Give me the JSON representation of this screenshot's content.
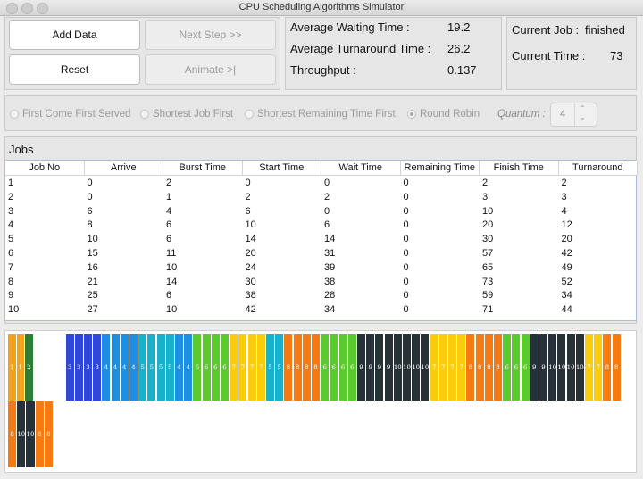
{
  "window": {
    "title": "CPU Scheduling Algorithms Simulator"
  },
  "buttons": {
    "add_data": "Add Data",
    "next_step": "Next Step >>",
    "reset": "Reset",
    "animate": "Animate >|"
  },
  "stats": {
    "avg_waiting_label": "Average Waiting Time :",
    "avg_waiting_value": "19.2",
    "avg_turnaround_label": "Average Turnaround Time :",
    "avg_turnaround_value": "26.2",
    "throughput_label": "Throughput :",
    "throughput_value": "0.137"
  },
  "status": {
    "current_job_label": "Current Job :",
    "current_job_value": "finished",
    "current_time_label": "Current Time :",
    "current_time_value": "73"
  },
  "algorithms": [
    {
      "label": "First Come First Served",
      "selected": false
    },
    {
      "label": "Shortest Job First",
      "selected": false
    },
    {
      "label": "Shortest Remaining Time First",
      "selected": false
    },
    {
      "label": "Round Robin",
      "selected": true
    }
  ],
  "quantum": {
    "label": "Quantum :",
    "value": "4"
  },
  "jobs": {
    "title": "Jobs",
    "columns": [
      "Job No",
      "Arrive",
      "Burst Time",
      "Start Time",
      "Wait Time",
      "Remaining Time",
      "Finish Time",
      "Turnaround"
    ],
    "rows": [
      [
        "1",
        "0",
        "2",
        "0",
        "0",
        "0",
        "2",
        "2"
      ],
      [
        "2",
        "0",
        "1",
        "2",
        "2",
        "0",
        "3",
        "3"
      ],
      [
        "3",
        "6",
        "4",
        "6",
        "0",
        "0",
        "10",
        "4"
      ],
      [
        "4",
        "8",
        "6",
        "10",
        "6",
        "0",
        "20",
        "12"
      ],
      [
        "5",
        "10",
        "6",
        "14",
        "14",
        "0",
        "30",
        "20"
      ],
      [
        "6",
        "15",
        "11",
        "20",
        "31",
        "0",
        "57",
        "42"
      ],
      [
        "7",
        "16",
        "10",
        "24",
        "39",
        "0",
        "65",
        "49"
      ],
      [
        "8",
        "21",
        "14",
        "30",
        "38",
        "0",
        "73",
        "52"
      ],
      [
        "9",
        "25",
        "6",
        "38",
        "28",
        "0",
        "59",
        "34"
      ],
      [
        "10",
        "27",
        "10",
        "42",
        "34",
        "0",
        "71",
        "44"
      ]
    ]
  },
  "job_colors": {
    "1": "#f3a21b",
    "2": "#2e7d32",
    "3": "#2f46d8",
    "4": "#1e8fe0",
    "5": "#18b1c9",
    "6": "#5cc92e",
    "7": "#f9cc0c",
    "8": "#f57a12",
    "9": "#263238",
    "10": "#263238"
  },
  "gantt": {
    "rows": [
      [
        "1",
        "1",
        "2",
        null,
        null,
        "3",
        "3",
        "3",
        "3",
        "4",
        "4",
        "4",
        "4",
        "5",
        "5",
        "5",
        "5",
        "4",
        "4",
        "6",
        "6",
        "6",
        "6",
        "7",
        "7",
        "7",
        "7",
        "5",
        "5",
        "8",
        "8",
        "8",
        "8",
        "6",
        "6",
        "6",
        "6",
        "9",
        "9",
        "9",
        "9",
        "10",
        "10",
        "10",
        "10",
        "7",
        "7",
        "7",
        "7",
        "8",
        "8",
        "8",
        "8",
        "6",
        "6",
        "6",
        "9",
        "9",
        "10",
        "10",
        "10",
        "10",
        "7",
        "7",
        "8",
        "8"
      ],
      [
        "8",
        "10",
        "10",
        "8",
        "8"
      ]
    ]
  }
}
